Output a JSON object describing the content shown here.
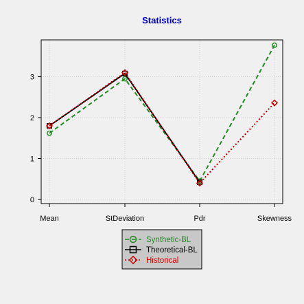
{
  "chart_data": {
    "type": "line",
    "title": "Statistics",
    "title_color": "#0000cc",
    "categories": [
      "Mean",
      "StDeviation",
      "Pdr",
      "Skewness"
    ],
    "ylim": [
      -0.1,
      3.9
    ],
    "yticks": [
      0,
      1,
      2,
      3
    ],
    "grid": true,
    "legend_position": "bottom-center",
    "series": [
      {
        "name": "Synthetic-BL",
        "values": [
          1.62,
          2.95,
          0.45,
          3.77
        ],
        "color": "#228b22",
        "line": "dashed",
        "marker": "circle"
      },
      {
        "name": "Theoretical-BL",
        "values": [
          1.8,
          3.08,
          0.42,
          null
        ],
        "color": "#000000",
        "line": "solid",
        "marker": "square"
      },
      {
        "name": "Historical",
        "values": [
          1.8,
          3.1,
          0.4,
          2.36
        ],
        "color": "#cc0000",
        "line": "dotted",
        "marker": "diamond"
      }
    ]
  }
}
